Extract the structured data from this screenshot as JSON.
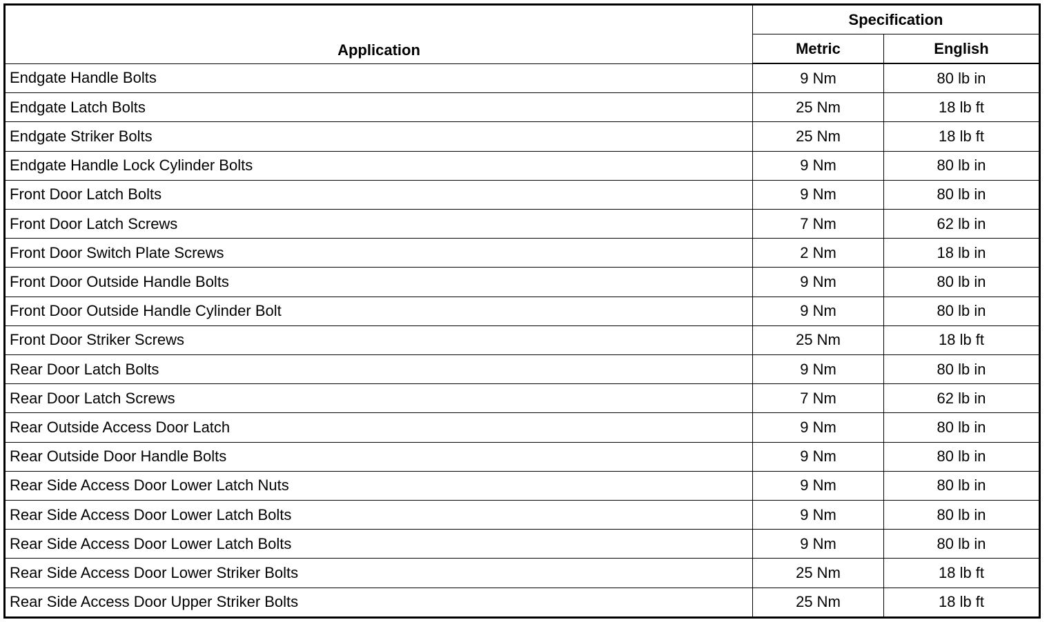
{
  "header": {
    "application": "Application",
    "specification": "Specification",
    "metric": "Metric",
    "english": "English"
  },
  "rows": [
    {
      "application": "Endgate Handle Bolts",
      "metric": "9 Nm",
      "english": "80 lb in"
    },
    {
      "application": "Endgate Latch Bolts",
      "metric": "25 Nm",
      "english": "18 lb ft"
    },
    {
      "application": "Endgate Striker Bolts",
      "metric": "25 Nm",
      "english": "18 lb ft"
    },
    {
      "application": "Endgate Handle Lock Cylinder Bolts",
      "metric": "9 Nm",
      "english": "80 lb in"
    },
    {
      "application": "Front Door Latch Bolts",
      "metric": "9 Nm",
      "english": "80 lb in"
    },
    {
      "application": "Front Door Latch Screws",
      "metric": "7 Nm",
      "english": "62 lb in"
    },
    {
      "application": "Front Door Switch Plate Screws",
      "metric": "2 Nm",
      "english": "18 lb in"
    },
    {
      "application": "Front Door Outside Handle Bolts",
      "metric": "9 Nm",
      "english": "80 lb in"
    },
    {
      "application": "Front Door Outside Handle Cylinder Bolt",
      "metric": "9 Nm",
      "english": "80 lb in"
    },
    {
      "application": "Front Door Striker Screws",
      "metric": "25 Nm",
      "english": "18 lb ft"
    },
    {
      "application": "Rear Door Latch Bolts",
      "metric": "9 Nm",
      "english": "80 lb in"
    },
    {
      "application": "Rear Door Latch Screws",
      "metric": "7 Nm",
      "english": "62 lb in"
    },
    {
      "application": "Rear Outside Access Door Latch",
      "metric": "9 Nm",
      "english": "80 lb in"
    },
    {
      "application": "Rear Outside Door Handle Bolts",
      "metric": "9 Nm",
      "english": "80 lb in"
    },
    {
      "application": "Rear Side Access Door Lower Latch Nuts",
      "metric": "9 Nm",
      "english": "80 lb in"
    },
    {
      "application": "Rear Side Access Door Lower Latch Bolts",
      "metric": "9 Nm",
      "english": "80 lb in"
    },
    {
      "application": "Rear Side Access Door Lower Latch Bolts",
      "metric": "9 Nm",
      "english": "80 lb in"
    },
    {
      "application": "Rear Side Access Door Lower Striker Bolts",
      "metric": "25 Nm",
      "english": "18 lb ft"
    },
    {
      "application": "Rear Side Access Door Upper Striker Bolts",
      "metric": "25 Nm",
      "english": "18 lb ft"
    }
  ]
}
